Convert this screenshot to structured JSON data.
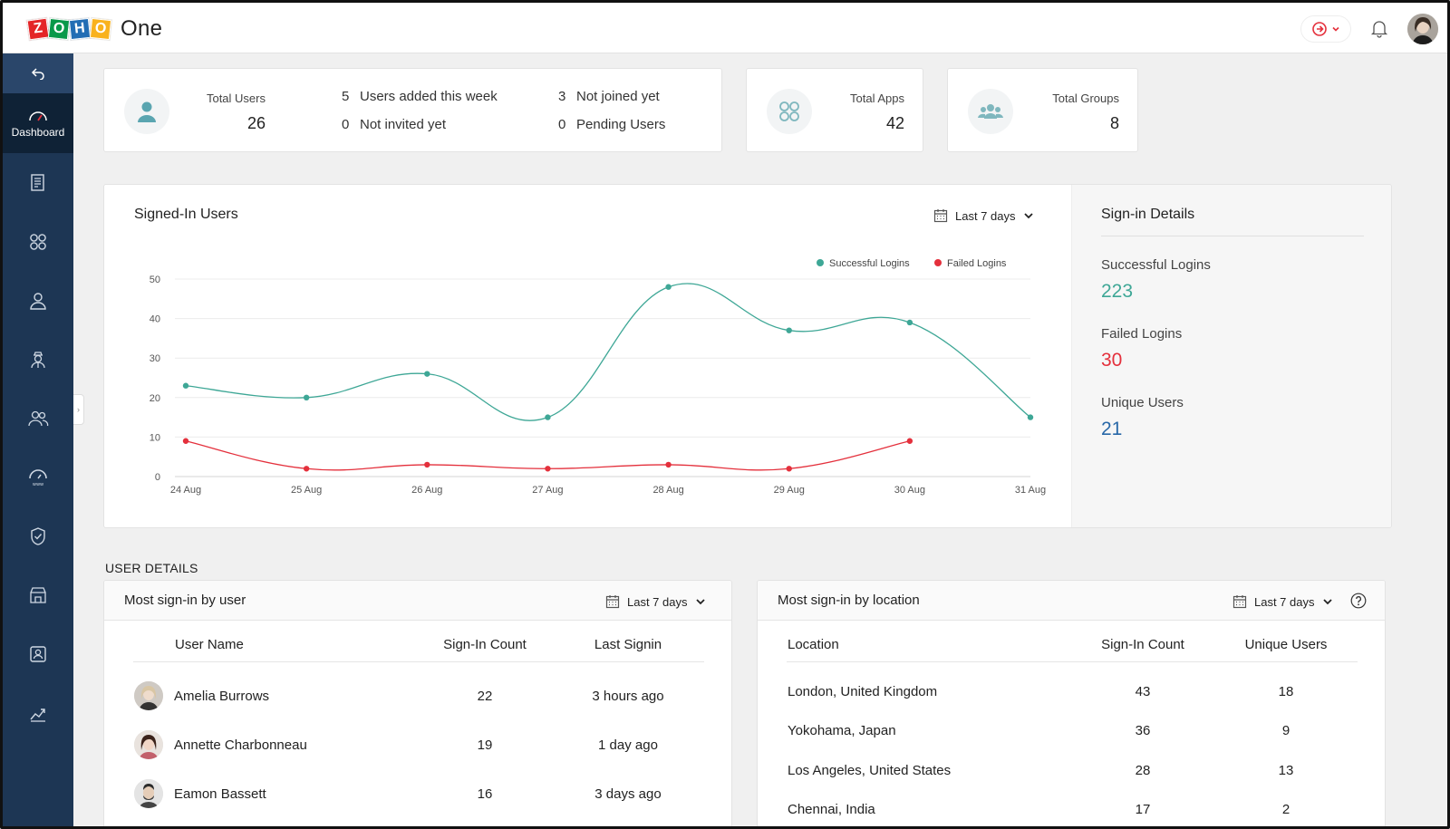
{
  "app": {
    "brand_letters": [
      "Z",
      "O",
      "H",
      "O"
    ],
    "product": "One"
  },
  "sidebar": {
    "active_label": "Dashboard",
    "items": [
      "reports-icon",
      "apps-icon",
      "user-icon",
      "admin-icon",
      "groups-icon",
      "domains-icon",
      "security-icon",
      "marketplace-icon",
      "directory-icon",
      "analytics-icon"
    ]
  },
  "stats": {
    "total_users": {
      "label": "Total Users",
      "value": "26"
    },
    "users_added": {
      "count": "5",
      "text": "Users added this week"
    },
    "not_invited": {
      "count": "0",
      "text": "Not invited yet"
    },
    "not_joined": {
      "count": "3",
      "text": "Not joined yet"
    },
    "pending": {
      "count": "0",
      "text": "Pending Users"
    },
    "total_apps": {
      "label": "Total Apps",
      "value": "42"
    },
    "total_groups": {
      "label": "Total Groups",
      "value": "8"
    }
  },
  "signed_in": {
    "title": "Signed-In Users",
    "filter": "Last 7 days",
    "side": {
      "title": "Sign-in Details",
      "successful_label": "Successful Logins",
      "successful_value": "223",
      "failed_label": "Failed Logins",
      "failed_value": "30",
      "unique_label": "Unique Users",
      "unique_value": "21"
    }
  },
  "colors": {
    "success": "#3ea796",
    "failed": "#e4303c",
    "unique": "#2868a8",
    "sidebar": "#1d3654"
  },
  "chart_data": {
    "type": "line",
    "categories": [
      "24 Aug",
      "25 Aug",
      "26 Aug",
      "27 Aug",
      "28 Aug",
      "29 Aug",
      "30 Aug",
      "31 Aug"
    ],
    "series": [
      {
        "name": "Successful Logins",
        "color": "#3ea796",
        "values": [
          23,
          20,
          26,
          15,
          48,
          37,
          39,
          15
        ]
      },
      {
        "name": "Failed Logins",
        "color": "#e4303c",
        "values": [
          9,
          2,
          3,
          2,
          3,
          2,
          9,
          null
        ]
      }
    ],
    "yticks": [
      0,
      10,
      20,
      30,
      40,
      50
    ],
    "ylim": [
      0,
      50
    ],
    "legend": "top-right",
    "grid": true
  },
  "user_details": {
    "section_label": "USER DETAILS",
    "by_user": {
      "title": "Most sign-in by user",
      "filter": "Last 7 days",
      "headers": [
        "User Name",
        "Sign-In Count",
        "Last Signin"
      ],
      "rows": [
        {
          "name": "Amelia Burrows",
          "count": "22",
          "last": "3 hours ago"
        },
        {
          "name": "Annette Charbonneau",
          "count": "19",
          "last": "1 day ago"
        },
        {
          "name": "Eamon Bassett",
          "count": "16",
          "last": "3 days ago"
        }
      ]
    },
    "by_location": {
      "title": "Most sign-in by location",
      "filter": "Last 7 days",
      "headers": [
        "Location",
        "Sign-In Count",
        "Unique Users"
      ],
      "rows": [
        {
          "location": "London, United Kingdom",
          "count": "43",
          "unique": "18"
        },
        {
          "location": "Yokohama, Japan",
          "count": "36",
          "unique": "9"
        },
        {
          "location": "Los Angeles, United States",
          "count": "28",
          "unique": "13"
        },
        {
          "location": "Chennai, India",
          "count": "17",
          "unique": "2"
        }
      ]
    }
  }
}
